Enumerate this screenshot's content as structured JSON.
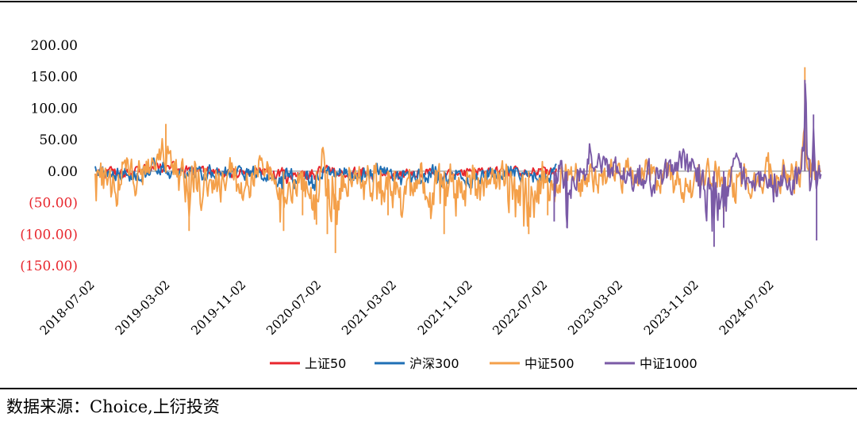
{
  "source_note": "数据来源：Choice,上衍投资",
  "chart_data": {
    "type": "line",
    "title": "",
    "xlabel": "",
    "ylabel": "",
    "ylim": [
      -150,
      200
    ],
    "x_range": [
      "2018-07-02",
      "2024-11-30"
    ],
    "y_ticks": [
      {
        "value": 200,
        "label": "200.00",
        "color": "#000000"
      },
      {
        "value": 150,
        "label": "150.00",
        "color": "#000000"
      },
      {
        "value": 100,
        "label": "100.00",
        "color": "#000000"
      },
      {
        "value": 50,
        "label": "50.00",
        "color": "#000000"
      },
      {
        "value": 0,
        "label": "0.00",
        "color": "#000000"
      },
      {
        "value": -50,
        "label": "(50.00)",
        "color": "#e8262d"
      },
      {
        "value": -100,
        "label": "(100.00)",
        "color": "#e8262d"
      },
      {
        "value": -150,
        "label": "(150.00)",
        "color": "#e8262d"
      }
    ],
    "x_ticks": [
      "2018-07-02",
      "2019-03-02",
      "2019-11-02",
      "2020-07-02",
      "2021-03-02",
      "2021-11-02",
      "2022-07-02",
      "2023-03-02",
      "2023-11-02",
      "2024-07-02"
    ],
    "grid": false,
    "legend_position": "bottom",
    "series": [
      {
        "name": "上证50",
        "color": "#e8262d",
        "start": "2018-07-02",
        "end": "2022-07-29",
        "points": [
          [
            "2018-07-02",
            2
          ],
          [
            "2018-10-15",
            -6
          ],
          [
            "2019-01-15",
            8
          ],
          [
            "2019-03-05",
            6
          ],
          [
            "2019-06-01",
            -9
          ],
          [
            "2019-09-15",
            -4
          ],
          [
            "2019-12-15",
            -2
          ],
          [
            "2020-02-15",
            -12
          ],
          [
            "2020-06-01",
            -14
          ],
          [
            "2020-07-06",
            6
          ],
          [
            "2020-10-15",
            -10
          ],
          [
            "2021-01-15",
            -6
          ],
          [
            "2021-04-01",
            -10
          ],
          [
            "2021-07-15",
            -8
          ],
          [
            "2021-10-15",
            -6
          ],
          [
            "2022-01-15",
            -8
          ],
          [
            "2022-04-15",
            -5
          ],
          [
            "2022-07-29",
            -4
          ]
        ],
        "amplitude": 14
      },
      {
        "name": "沪深300",
        "color": "#1f6fb5",
        "start": "2018-07-02",
        "end": "2022-07-29",
        "points": [
          [
            "2018-07-02",
            -5
          ],
          [
            "2018-10-15",
            -10
          ],
          [
            "2019-01-15",
            10
          ],
          [
            "2019-03-05",
            12
          ],
          [
            "2019-06-01",
            -15
          ],
          [
            "2019-09-15",
            -8
          ],
          [
            "2019-12-15",
            -3
          ],
          [
            "2020-02-15",
            -20
          ],
          [
            "2020-06-01",
            -22
          ],
          [
            "2020-07-06",
            10
          ],
          [
            "2020-10-15",
            -15
          ],
          [
            "2021-01-15",
            -10
          ],
          [
            "2021-04-01",
            -18
          ],
          [
            "2021-07-15",
            -20
          ],
          [
            "2021-10-15",
            -25
          ],
          [
            "2022-01-15",
            -12
          ],
          [
            "2022-04-15",
            -8
          ],
          [
            "2022-07-29",
            -10
          ]
        ],
        "amplitude": 20
      },
      {
        "name": "中证500",
        "color": "#f4a04a",
        "start": "2018-07-02",
        "end": "2024-11-29",
        "points": [
          [
            "2018-07-02",
            -60
          ],
          [
            "2018-08-15",
            -20
          ],
          [
            "2018-10-15",
            -40
          ],
          [
            "2018-12-15",
            -10
          ],
          [
            "2019-02-15",
            75
          ],
          [
            "2019-03-15",
            -20
          ],
          [
            "2019-05-01",
            -95
          ],
          [
            "2019-06-15",
            -50
          ],
          [
            "2019-08-15",
            -30
          ],
          [
            "2019-10-01",
            -55
          ],
          [
            "2019-12-15",
            0
          ],
          [
            "2020-01-15",
            -20
          ],
          [
            "2020-03-01",
            -95
          ],
          [
            "2020-05-01",
            -70
          ],
          [
            "2020-06-15",
            -85
          ],
          [
            "2020-07-06",
            60
          ],
          [
            "2020-07-20",
            -100
          ],
          [
            "2020-08-15",
            -130
          ],
          [
            "2020-10-01",
            -40
          ],
          [
            "2020-12-15",
            -60
          ],
          [
            "2021-02-01",
            -70
          ],
          [
            "2021-04-01",
            -60
          ],
          [
            "2021-06-01",
            -40
          ],
          [
            "2021-08-01",
            -100
          ],
          [
            "2021-09-15",
            -60
          ],
          [
            "2021-11-15",
            -40
          ],
          [
            "2022-01-15",
            -20
          ],
          [
            "2022-03-01",
            -40
          ],
          [
            "2022-05-01",
            -100
          ],
          [
            "2022-07-01",
            -70
          ],
          [
            "2022-09-01",
            -20
          ],
          [
            "2022-11-01",
            -10
          ],
          [
            "2023-01-01",
            -5
          ],
          [
            "2023-05-01",
            -10
          ],
          [
            "2023-09-01",
            -30
          ],
          [
            "2023-11-15",
            -40
          ],
          [
            "2024-01-15",
            -50
          ],
          [
            "2024-04-01",
            -30
          ],
          [
            "2024-07-01",
            -10
          ],
          [
            "2024-09-20",
            -10
          ],
          [
            "2024-10-08",
            165
          ],
          [
            "2024-10-20",
            -40
          ],
          [
            "2024-11-29",
            10
          ]
        ],
        "amplitude": 45
      },
      {
        "name": "中证1000",
        "color": "#7a5aa6",
        "start": "2022-07-22",
        "end": "2024-11-29",
        "points": [
          [
            "2022-07-22",
            -80
          ],
          [
            "2022-08-10",
            35
          ],
          [
            "2022-09-01",
            -90
          ],
          [
            "2022-10-01",
            -30
          ],
          [
            "2022-11-15",
            35
          ],
          [
            "2023-01-15",
            -10
          ],
          [
            "2023-03-15",
            -10
          ],
          [
            "2023-05-15",
            -25
          ],
          [
            "2023-07-15",
            -10
          ],
          [
            "2023-09-15",
            30
          ],
          [
            "2023-11-15",
            -60
          ],
          [
            "2023-12-20",
            -120
          ],
          [
            "2024-01-20",
            -90
          ],
          [
            "2024-02-15",
            40
          ],
          [
            "2024-03-15",
            -40
          ],
          [
            "2024-05-15",
            -20
          ],
          [
            "2024-07-01",
            -40
          ],
          [
            "2024-09-20",
            -30
          ],
          [
            "2024-10-08",
            145
          ],
          [
            "2024-10-25",
            -60
          ],
          [
            "2024-11-05",
            90
          ],
          [
            "2024-11-15",
            -110
          ],
          [
            "2024-11-29",
            10
          ]
        ],
        "amplitude": 40
      }
    ]
  }
}
